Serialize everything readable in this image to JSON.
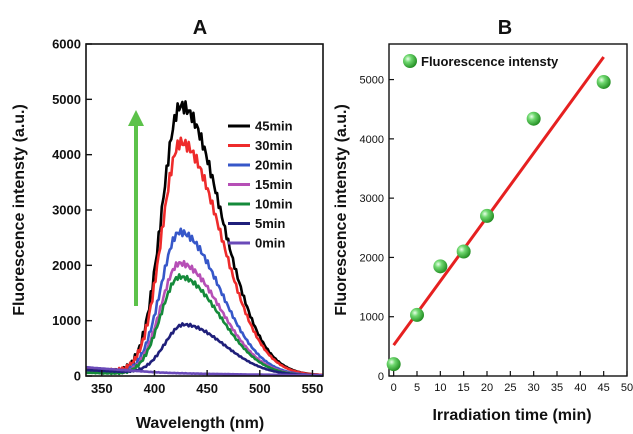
{
  "chart_data": [
    {
      "panel": "A",
      "type": "line",
      "xlabel": "Wavelength (nm)",
      "ylabel": "Fluorescence intensty (a.u.)",
      "xlim": [
        335,
        560
      ],
      "ylim": [
        0,
        6000
      ],
      "xticks": [
        350,
        400,
        450,
        500,
        550
      ],
      "yticks": [
        0,
        1000,
        2000,
        3000,
        4000,
        5000,
        6000
      ],
      "legend_position": "right",
      "arrow": "green upward arrow indicating increasing irradiation time",
      "series": [
        {
          "name": "45min",
          "color": "#000000",
          "peak": 4950,
          "peak_x": 425,
          "baseline": 110
        },
        {
          "name": "30min",
          "color": "#ee2b2b",
          "peak": 4300,
          "peak_x": 425,
          "baseline": 130
        },
        {
          "name": "20min",
          "color": "#3657c9",
          "peak": 2650,
          "peak_x": 424,
          "baseline": 80
        },
        {
          "name": "15min",
          "color": "#b64fb6",
          "peak": 2080,
          "peak_x": 424,
          "baseline": 70
        },
        {
          "name": "10min",
          "color": "#148a3a",
          "peak": 1830,
          "peak_x": 424,
          "baseline": 60
        },
        {
          "name": "5min",
          "color": "#1f1f7a",
          "peak": 1000,
          "peak_x": 428,
          "baseline": 110
        },
        {
          "name": "0min",
          "color": "#6a4ab8",
          "peak": 150,
          "peak_x": 410,
          "baseline": 160
        }
      ]
    },
    {
      "panel": "B",
      "type": "scatter",
      "xlabel": "Irradiation time (min)",
      "ylabel": "Fluorescence intensty (a.u.)",
      "xlim": [
        -1,
        50
      ],
      "ylim": [
        0,
        5600
      ],
      "xticks": [
        0,
        5,
        10,
        15,
        20,
        25,
        30,
        35,
        40,
        45,
        50
      ],
      "yticks": [
        0,
        1000,
        2000,
        3000,
        4000,
        5000
      ],
      "legend_position": "top-left",
      "series": [
        {
          "name": "Fluorescence intensty",
          "color": "#3fbf3f",
          "x": [
            0,
            5,
            10,
            15,
            20,
            30,
            45
          ],
          "y": [
            200,
            1030,
            1850,
            2100,
            2700,
            4340,
            4960
          ]
        }
      ],
      "fit_line": {
        "color": "#e62020",
        "x": [
          0,
          45
        ],
        "y": [
          520,
          5380
        ]
      }
    }
  ]
}
